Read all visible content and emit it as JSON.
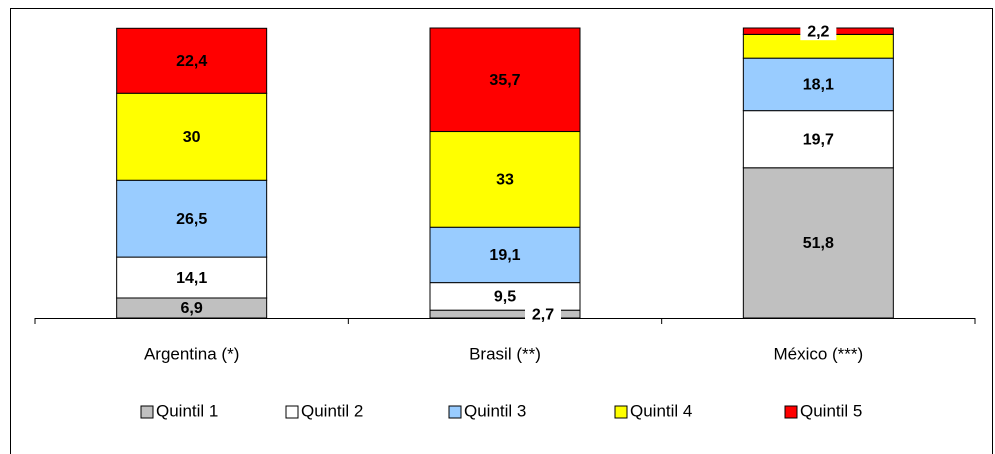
{
  "chart_data": {
    "type": "stacked_bar",
    "categories": [
      "Argentina (*)",
      "Brasil (**)",
      "México (***)"
    ],
    "ylim": [
      0,
      100
    ],
    "series": [
      {
        "name": "Quintil 1",
        "color": "#c0c0c0",
        "values": [
          6.9,
          2.7,
          51.8
        ],
        "value_labels": [
          "6,9",
          "2,7",
          "51,8"
        ]
      },
      {
        "name": "Quintil 2",
        "color": "#ffffff",
        "values": [
          14.1,
          9.5,
          19.7
        ],
        "value_labels": [
          "14,1",
          "9,5",
          "19,7"
        ]
      },
      {
        "name": "Quintil 3",
        "color": "#99ccff",
        "values": [
          26.5,
          19.1,
          18.1
        ],
        "value_labels": [
          "26,5",
          "19,1",
          "18,1"
        ]
      },
      {
        "name": "Quintil 4",
        "color": "#ffff00",
        "values": [
          30,
          33,
          8.2
        ],
        "value_labels": [
          "30",
          "33",
          null
        ]
      },
      {
        "name": "Quintil 5",
        "color": "#ff0000",
        "values": [
          22.4,
          35.7,
          2.2
        ],
        "value_labels": [
          "22,4",
          "35,7",
          "2,2"
        ]
      }
    ],
    "legend": "bottom"
  }
}
